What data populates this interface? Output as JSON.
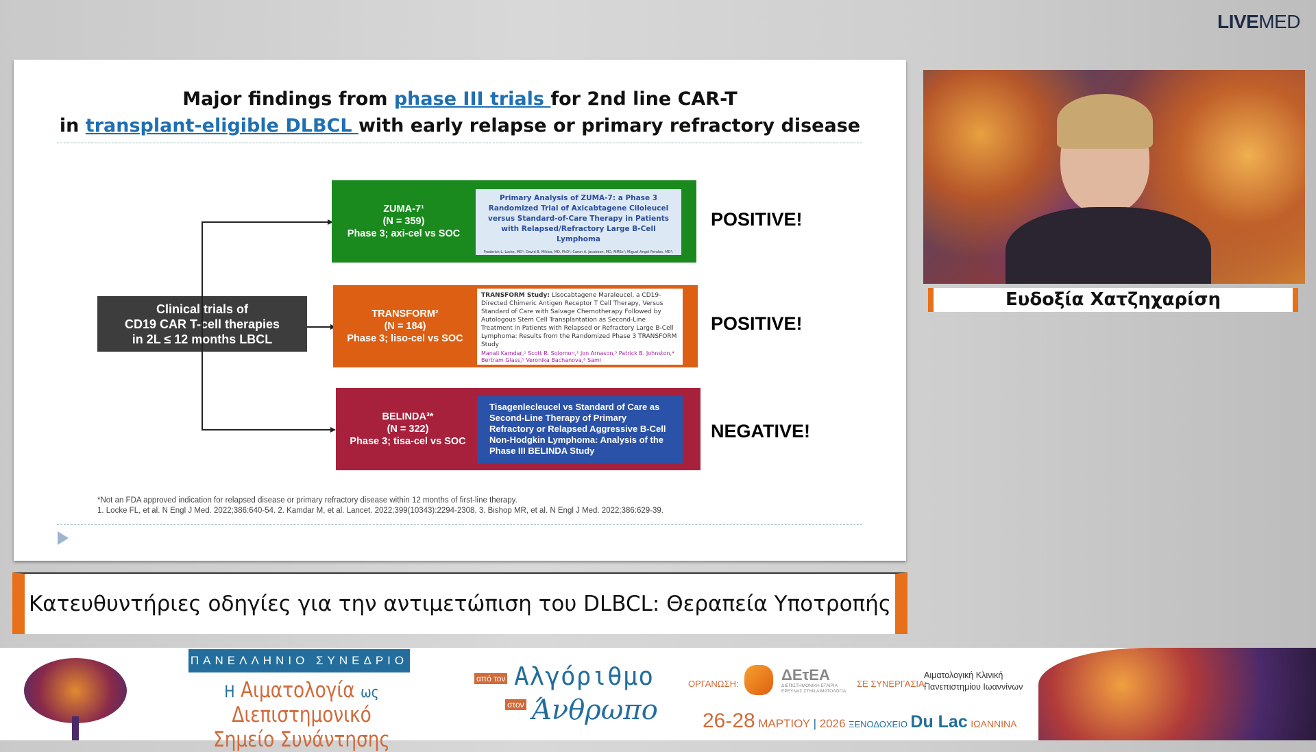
{
  "brand": {
    "logo_bold": "LIVE",
    "logo_light": "MED"
  },
  "slide": {
    "title_line1_pre": "Major findings from ",
    "title_line1_link": "phase III trials ",
    "title_line1_post": "for 2nd line CAR-T",
    "title_line2_pre": "in ",
    "title_line2_link": "transplant-eligible DLBCL ",
    "title_line2_post": "with early relapse or primary refractory disease",
    "root_box": [
      "Clinical trials of",
      "CD19 CAR T-cell therapies",
      "in 2L ≤ 12 months LBCL"
    ],
    "trials": [
      {
        "name": "ZUMA-7¹",
        "n": "(N = 359)",
        "design": "Phase 3; axi-cel vs SOC",
        "color": "#1a8a1e",
        "paper_title": "Primary Analysis of ZUMA-7: a Phase 3 Randomized Trial of Axicabtagene Ciloleucel versus Standard-of-Care Therapy in Patients with Relapsed/Refractory Large B-Cell Lymphoma",
        "paper_authors": "Frederick L. Locke, MD¹; David B. Miklos, MD, PhD²; Caron A. Jacobson, MD, MMSc³; Miguel-Angel Perales, MD⁴;",
        "result": "POSITIVE!"
      },
      {
        "name": "TRANSFORM²",
        "n": "(N = 184)",
        "design": "Phase 3; liso-cel vs SOC",
        "color": "#dc5f14",
        "paper_title_bold": "TRANSFORM Study:",
        "paper_title": " Lisocabtagene Maraleucel, a CD19-Directed Chimeric Antigen Receptor T Cell Therapy, Versus Standard of Care with Salvage Chemotherapy Followed by Autologous Stem Cell Transplantation as Second-Line Treatment in Patients with Relapsed or Refractory Large B-Cell Lymphoma: Results from the Randomized Phase 3 TRANSFORM Study",
        "paper_authors": "Manali Kamdar,¹ Scott R. Solomon,² Jon Arnason,³ Patrick B. Johnston,⁴ Bertram Glass,⁵ Veronika Bachanova,⁶ Sami",
        "result": "POSITIVE!"
      },
      {
        "name": "BELINDA³*",
        "n": "(N = 322)",
        "design": "Phase 3; tisa-cel vs SOC",
        "color": "#a8213c",
        "paper_title": "Tisagenlecleucel vs Standard of Care as Second-Line Therapy of Primary Refractory or Relapsed Aggressive B-Cell Non-Hodgkin Lymphoma: Analysis of the Phase III BELINDA Study",
        "paper_authors": "",
        "result": "NEGATIVE!"
      }
    ],
    "footnote1": "*Not an FDA approved indication for relapsed disease or primary refractory disease within 12 months of first-line therapy.",
    "footnote2": "1. Locke FL, et al. N Engl J Med. 2022;386:640-54. 2. Kamdar M, et al. Lancet. 2022;399(10343):2294-2308. 3. Bishop MR, et al. N Engl J Med. 2022;386:629-39."
  },
  "speaker": {
    "name": "Ευδοξία Χατζηχαρίση"
  },
  "lower_third": {
    "title": "Κατευθυντήριες οδηγίες για την αντιμετώπιση του DLBCL: Θεραπεία Υποτροπής"
  },
  "banner": {
    "tag": "ΠΑΝΕΛΛΗΝΙΟ ΣΥΝΕΔΡΙΟ",
    "title_h": "Η",
    "title_a": "Αιματολογία",
    "title_ws": "ως",
    "title_b": "Διεπιστημονικό",
    "title_c": "Σημείο Συνάντησης",
    "from_label": "από τον",
    "from_word": "Αλγόριθμο",
    "to_label": "στον",
    "to_word": "Άνθρωπο",
    "org_label": "ΟΡΓΑΝΩΣΗ:",
    "org_name": "ΔΕτΕΑ",
    "org_sub": "ΔΙΕΠΙΣΤΗΜΟΝΙΚΗ ΕΤΑΙΡΙΑ ΕΡΕΥΝΑΣ ΣΤΗΝ ΑΙΜΑΤΟΛΟΓΙΑ",
    "partner_label": "ΣΕ ΣΥΝΕΡΓΑΣΙΑ:",
    "partner_name": "Αιματολογική Κλινική Πανεπιστημίου Ιωαννίνων",
    "dates": "26-28",
    "month": "ΜΑΡΤΙΟΥ",
    "year": "2026",
    "hotel_label": "ΞΕΝΟΔΟΧΕΙΟ",
    "hotel": "Du Lac",
    "city": "ΙΩΑΝΝΙΝΑ"
  }
}
